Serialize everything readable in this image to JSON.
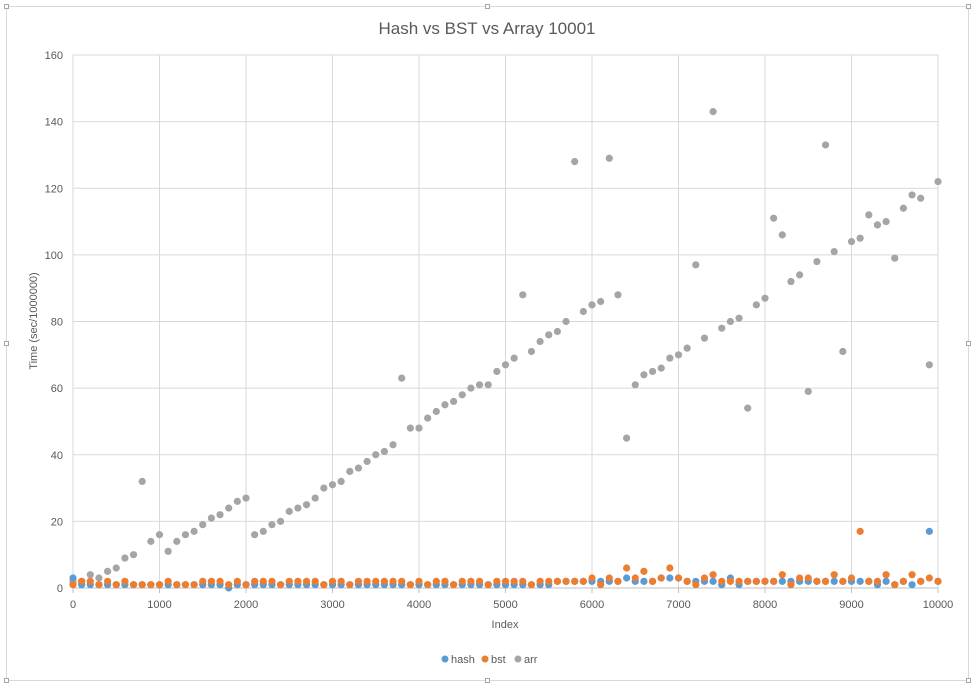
{
  "chart_data": {
    "type": "scatter",
    "title": "Hash vs BST vs Array 10001",
    "xlabel": "Index",
    "ylabel": "Time (sec/1000000)",
    "xlim": [
      0,
      10000
    ],
    "ylim": [
      0,
      160
    ],
    "xticks": [
      "0",
      "1000",
      "2000",
      "3000",
      "4000",
      "5000",
      "6000",
      "7000",
      "8000",
      "9000",
      "10000"
    ],
    "yticks": [
      "0",
      "20",
      "40",
      "60",
      "80",
      "100",
      "120",
      "140",
      "160"
    ],
    "grid": true,
    "legend": "bottom",
    "colors": {
      "hash": "#5b9bd5",
      "bst": "#ed7d31",
      "arr": "#a5a5a5"
    },
    "series": [
      {
        "name": "hash",
        "x": [
          0,
          100,
          200,
          300,
          400,
          500,
          600,
          700,
          800,
          900,
          1000,
          1100,
          1200,
          1300,
          1400,
          1500,
          1600,
          1700,
          1800,
          1900,
          2000,
          2100,
          2200,
          2300,
          2400,
          2500,
          2600,
          2700,
          2800,
          2900,
          3000,
          3100,
          3200,
          3300,
          3400,
          3500,
          3600,
          3700,
          3800,
          3900,
          4000,
          4100,
          4200,
          4300,
          4400,
          4500,
          4600,
          4700,
          4800,
          4900,
          5000,
          5100,
          5200,
          5300,
          5400,
          5500,
          5600,
          5700,
          5800,
          5900,
          6000,
          6100,
          6200,
          6300,
          6400,
          6500,
          6600,
          6700,
          6800,
          6900,
          7000,
          7100,
          7200,
          7300,
          7400,
          7500,
          7600,
          7700,
          7800,
          7900,
          8000,
          8100,
          8200,
          8300,
          8400,
          8500,
          8600,
          8700,
          8800,
          8900,
          9000,
          9100,
          9200,
          9300,
          9400,
          9500,
          9600,
          9700,
          9800,
          9900,
          10000
        ],
        "y": [
          3,
          1,
          1,
          1,
          1,
          1,
          1,
          1,
          1,
          1,
          1,
          1,
          1,
          1,
          1,
          1,
          1,
          1,
          0,
          1,
          1,
          1,
          1,
          1,
          1,
          1,
          1,
          1,
          1,
          1,
          1,
          1,
          1,
          1,
          1,
          1,
          1,
          1,
          1,
          1,
          1,
          1,
          1,
          1,
          1,
          1,
          1,
          1,
          1,
          1,
          1,
          1,
          1,
          1,
          1,
          1,
          2,
          2,
          2,
          2,
          2,
          2,
          2,
          2,
          3,
          2,
          2,
          2,
          3,
          3,
          3,
          2,
          2,
          2,
          2,
          1,
          3,
          1,
          2,
          2,
          2,
          2,
          2,
          2,
          2,
          2,
          2,
          2,
          2,
          2,
          2,
          2,
          2,
          1,
          2,
          1,
          2,
          1,
          2,
          17,
          2
        ]
      },
      {
        "name": "bst",
        "x": [
          0,
          100,
          200,
          300,
          400,
          500,
          600,
          700,
          800,
          900,
          1000,
          1100,
          1200,
          1300,
          1400,
          1500,
          1600,
          1700,
          1800,
          1900,
          2000,
          2100,
          2200,
          2300,
          2400,
          2500,
          2600,
          2700,
          2800,
          2900,
          3000,
          3100,
          3200,
          3300,
          3400,
          3500,
          3600,
          3700,
          3800,
          3900,
          4000,
          4100,
          4200,
          4300,
          4400,
          4500,
          4600,
          4700,
          4800,
          4900,
          5000,
          5100,
          5200,
          5300,
          5400,
          5500,
          5600,
          5700,
          5800,
          5900,
          6000,
          6100,
          6200,
          6300,
          6400,
          6500,
          6600,
          6700,
          6800,
          6900,
          7000,
          7100,
          7200,
          7300,
          7400,
          7500,
          7600,
          7700,
          7800,
          7900,
          8000,
          8100,
          8200,
          8300,
          8400,
          8500,
          8600,
          8700,
          8800,
          8900,
          9000,
          9100,
          9200,
          9300,
          9400,
          9500,
          9600,
          9700,
          9800,
          9900,
          10000
        ],
        "y": [
          1,
          2,
          2,
          1,
          2,
          1,
          2,
          1,
          1,
          1,
          1,
          2,
          1,
          1,
          1,
          2,
          2,
          2,
          1,
          2,
          1,
          2,
          2,
          2,
          1,
          2,
          2,
          2,
          2,
          1,
          2,
          2,
          1,
          2,
          2,
          2,
          2,
          2,
          2,
          1,
          2,
          1,
          2,
          2,
          1,
          2,
          2,
          2,
          1,
          2,
          2,
          2,
          2,
          1,
          2,
          2,
          2,
          2,
          2,
          2,
          3,
          1,
          3,
          2,
          6,
          3,
          5,
          2,
          3,
          6,
          3,
          2,
          1,
          3,
          4,
          2,
          2,
          2,
          2,
          2,
          2,
          2,
          4,
          1,
          3,
          3,
          2,
          2,
          4,
          2,
          3,
          17,
          2,
          2,
          4,
          1,
          2,
          4,
          2,
          3,
          2
        ]
      },
      {
        "name": "arr",
        "x": [
          0,
          100,
          200,
          300,
          400,
          500,
          600,
          700,
          800,
          900,
          1000,
          1100,
          1200,
          1300,
          1400,
          1500,
          1600,
          1700,
          1800,
          1900,
          2000,
          2100,
          2200,
          2300,
          2400,
          2500,
          2600,
          2700,
          2800,
          2900,
          3000,
          3100,
          3200,
          3300,
          3400,
          3500,
          3600,
          3700,
          3800,
          3900,
          4000,
          4100,
          4200,
          4300,
          4400,
          4500,
          4600,
          4700,
          4800,
          4900,
          5000,
          5100,
          5200,
          5300,
          5400,
          5500,
          5600,
          5700,
          5800,
          5900,
          6000,
          6100,
          6200,
          6300,
          6400,
          6500,
          6600,
          6700,
          6800,
          6900,
          7000,
          7100,
          7200,
          7300,
          7400,
          7500,
          7600,
          7700,
          7800,
          7900,
          8000,
          8100,
          8200,
          8300,
          8400,
          8500,
          8600,
          8700,
          8800,
          8900,
          9000,
          9100,
          9200,
          9300,
          9400,
          9500,
          9600,
          9700,
          9800,
          9900,
          10000
        ],
        "y": [
          2,
          2,
          4,
          3,
          5,
          6,
          9,
          10,
          32,
          14,
          16,
          11,
          14,
          16,
          17,
          19,
          21,
          22,
          24,
          26,
          27,
          16,
          17,
          19,
          20,
          23,
          24,
          25,
          27,
          30,
          31,
          32,
          35,
          36,
          38,
          40,
          41,
          43,
          63,
          48,
          48,
          51,
          53,
          55,
          56,
          58,
          60,
          61,
          61,
          65,
          67,
          69,
          88,
          71,
          74,
          76,
          77,
          80,
          128,
          83,
          85,
          86,
          129,
          88,
          45,
          61,
          64,
          65,
          66,
          69,
          70,
          72,
          97,
          75,
          143,
          78,
          80,
          81,
          54,
          85,
          87,
          111,
          106,
          92,
          94,
          59,
          98,
          133,
          101,
          71,
          104,
          105,
          112,
          109,
          110,
          99,
          114,
          118,
          117,
          67,
          122
        ]
      }
    ]
  }
}
